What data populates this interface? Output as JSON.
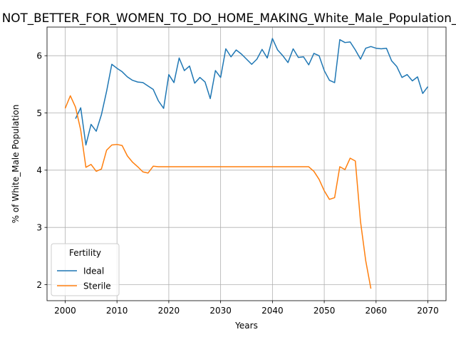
{
  "chart_data": {
    "type": "line",
    "title": "NOT_BETTER_FOR_WOMEN_TO_DO_HOME_MAKING_White_Male_Population_Score",
    "xlabel": "Years",
    "ylabel": "% of White_Male Population",
    "xlim": [
      1996.5,
      2073.5
    ],
    "ylim": [
      1.72,
      6.5
    ],
    "xticks": [
      2000,
      2010,
      2020,
      2030,
      2040,
      2050,
      2060,
      2070
    ],
    "yticks": [
      2,
      3,
      4,
      5,
      6
    ],
    "grid": true,
    "legend": {
      "title": "Fertility",
      "position": "lower-left"
    },
    "series": [
      {
        "name": "Ideal",
        "color": "#1f77b4",
        "x": [
          2002,
          2003,
          2004,
          2005,
          2006,
          2007,
          2008,
          2009,
          2010,
          2011,
          2012,
          2013,
          2014,
          2015,
          2016,
          2017,
          2018,
          2019,
          2020,
          2021,
          2022,
          2023,
          2024,
          2025,
          2026,
          2027,
          2028,
          2029,
          2030,
          2031,
          2032,
          2033,
          2034,
          2035,
          2036,
          2037,
          2038,
          2039,
          2040,
          2041,
          2042,
          2043,
          2044,
          2045,
          2046,
          2047,
          2048,
          2049,
          2050,
          2051,
          2052,
          2053,
          2054,
          2055,
          2056,
          2057,
          2058,
          2059,
          2060,
          2061,
          2062,
          2063,
          2064,
          2065,
          2066,
          2067,
          2068,
          2069,
          2070
        ],
        "y": [
          4.9,
          5.09,
          4.44,
          4.8,
          4.68,
          4.97,
          5.38,
          5.85,
          5.78,
          5.72,
          5.63,
          5.57,
          5.54,
          5.53,
          5.47,
          5.41,
          5.21,
          5.08,
          5.67,
          5.53,
          5.96,
          5.74,
          5.82,
          5.52,
          5.62,
          5.54,
          5.25,
          5.74,
          5.62,
          6.12,
          5.98,
          6.1,
          6.03,
          5.94,
          5.85,
          5.94,
          6.11,
          5.96,
          6.3,
          6.1,
          6.0,
          5.88,
          6.12,
          5.97,
          5.98,
          5.84,
          6.04,
          6.0,
          5.74,
          5.57,
          5.53,
          6.28,
          6.23,
          6.24,
          6.1,
          5.94,
          6.13,
          6.16,
          6.13,
          6.12,
          6.13,
          5.91,
          5.81,
          5.62,
          5.67,
          5.56,
          5.63,
          5.34,
          5.46
        ]
      },
      {
        "name": "Sterile",
        "color": "#ff7f0e",
        "x": [
          2000,
          2001,
          2002,
          2003,
          2004,
          2005,
          2006,
          2007,
          2008,
          2009,
          2010,
          2011,
          2012,
          2013,
          2014,
          2015,
          2016,
          2017,
          2018,
          2019,
          2020,
          2021,
          2022,
          2023,
          2024,
          2025,
          2026,
          2027,
          2028,
          2029,
          2030,
          2031,
          2032,
          2033,
          2034,
          2035,
          2036,
          2037,
          2038,
          2039,
          2040,
          2041,
          2042,
          2043,
          2044,
          2045,
          2046,
          2047,
          2048,
          2049,
          2050,
          2051,
          2052,
          2053,
          2054,
          2055,
          2056,
          2057,
          2058,
          2059
        ],
        "y": [
          5.08,
          5.3,
          5.1,
          4.7,
          4.05,
          4.1,
          3.98,
          4.02,
          4.35,
          4.44,
          4.45,
          4.43,
          4.25,
          4.14,
          4.06,
          3.97,
          3.95,
          4.07,
          4.06,
          4.06,
          4.06,
          4.06,
          4.06,
          4.06,
          4.06,
          4.06,
          4.06,
          4.06,
          4.06,
          4.06,
          4.06,
          4.06,
          4.06,
          4.06,
          4.06,
          4.06,
          4.06,
          4.06,
          4.06,
          4.06,
          4.06,
          4.06,
          4.06,
          4.06,
          4.06,
          4.06,
          4.06,
          4.06,
          3.98,
          3.84,
          3.64,
          3.49,
          3.52,
          4.06,
          4.01,
          4.21,
          4.16,
          3.1,
          2.42,
          1.93
        ]
      }
    ]
  }
}
